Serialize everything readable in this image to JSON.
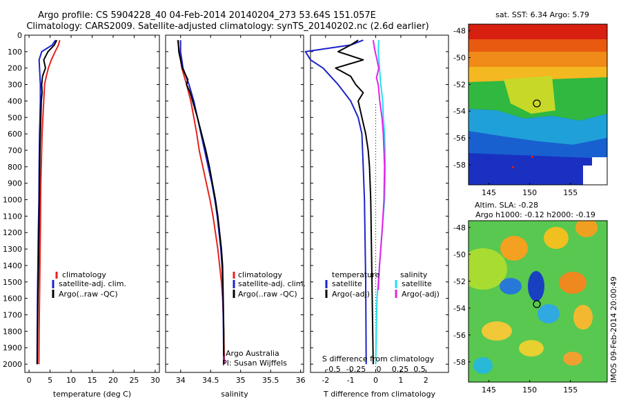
{
  "header": {
    "line1": "Argo profile: CS 5904228_40 04-Feb-2014 20140204_273 53.64S 151.057E",
    "line2": "Climatology: CARS2009. Satellite-adjusted climatology: synTS_20140202.nc (2.6d earlier)"
  },
  "side_label": "IMOS 09-Feb-2014 20:00:49",
  "colors": {
    "climatology": "#e8201a",
    "satellite": "#1a22c8",
    "argo": "#000000",
    "satellite_s": "#1ee0f0",
    "argo_s": "#e81ee8"
  },
  "chart_data": [
    {
      "type": "line",
      "xlabel": "temperature (deg C)",
      "ylabel": "",
      "xlim": [
        -1,
        31
      ],
      "ylim": [
        2050,
        0
      ],
      "xticks": [
        0,
        5,
        10,
        15,
        20,
        25,
        30
      ],
      "yticks": [
        0,
        100,
        200,
        300,
        400,
        500,
        600,
        700,
        800,
        900,
        1000,
        1100,
        1200,
        1300,
        1400,
        1500,
        1600,
        1700,
        1800,
        1900,
        2000
      ],
      "legend": [
        "climatology",
        "satellite-adj. clim.",
        "Argo(..raw -QC)"
      ],
      "series": [
        {
          "key": "climatology",
          "values": [
            [
              7.3,
              30
            ],
            [
              7.0,
              60
            ],
            [
              6.2,
              100
            ],
            [
              5.3,
              150
            ],
            [
              4.6,
              200
            ],
            [
              4.1,
              250
            ],
            [
              3.7,
              300
            ],
            [
              3.5,
              400
            ],
            [
              3.3,
              500
            ],
            [
              3.1,
              600
            ],
            [
              3.0,
              700
            ],
            [
              2.9,
              800
            ],
            [
              2.8,
              900
            ],
            [
              2.75,
              1000
            ],
            [
              2.7,
              1200
            ],
            [
              2.6,
              1400
            ],
            [
              2.5,
              1600
            ],
            [
              2.4,
              1800
            ],
            [
              2.35,
              2000
            ]
          ]
        },
        {
          "key": "satellite",
          "values": [
            [
              6.3,
              30
            ],
            [
              5.5,
              60
            ],
            [
              3.0,
              100
            ],
            [
              2.4,
              150
            ],
            [
              2.5,
              200
            ],
            [
              2.6,
              250
            ],
            [
              2.7,
              300
            ],
            [
              2.7,
              400
            ],
            [
              2.6,
              500
            ],
            [
              2.5,
              600
            ],
            [
              2.45,
              700
            ],
            [
              2.4,
              800
            ],
            [
              2.35,
              1000
            ],
            [
              2.2,
              1200
            ],
            [
              2.1,
              1400
            ],
            [
              2.0,
              1600
            ],
            [
              1.95,
              1800
            ],
            [
              1.9,
              2000
            ]
          ]
        },
        {
          "key": "argo",
          "values": [
            [
              6.6,
              30
            ],
            [
              6.0,
              60
            ],
            [
              4.5,
              100
            ],
            [
              3.5,
              150
            ],
            [
              3.9,
              200
            ],
            [
              3.2,
              250
            ],
            [
              3.0,
              300
            ],
            [
              3.1,
              350
            ],
            [
              2.9,
              400
            ],
            [
              2.8,
              500
            ],
            [
              2.7,
              600
            ],
            [
              2.6,
              700
            ],
            [
              2.55,
              800
            ],
            [
              2.5,
              900
            ],
            [
              2.45,
              1000
            ],
            [
              2.35,
              1200
            ],
            [
              2.25,
              1400
            ],
            [
              2.1,
              1600
            ],
            [
              2.0,
              1800
            ],
            [
              1.95,
              2000
            ]
          ]
        }
      ]
    },
    {
      "type": "line",
      "xlabel": "salinity",
      "ylabel": "",
      "xlim": [
        33.75,
        36.05
      ],
      "ylim": [
        2050,
        0
      ],
      "xticks": [
        34,
        34.5,
        35,
        35.5,
        36
      ],
      "legend": [
        "climatology",
        "satellite-adj. clim.",
        "Argo(..raw -QC)"
      ],
      "annotation": [
        "Argo Australia",
        "PI: Susan Wijffels"
      ],
      "series": [
        {
          "key": "climatology",
          "values": [
            [
              33.95,
              30
            ],
            [
              33.98,
              100
            ],
            [
              34.02,
              200
            ],
            [
              34.1,
              300
            ],
            [
              34.17,
              400
            ],
            [
              34.22,
              500
            ],
            [
              34.27,
              600
            ],
            [
              34.31,
              700
            ],
            [
              34.37,
              800
            ],
            [
              34.43,
              900
            ],
            [
              34.49,
              1000
            ],
            [
              34.54,
              1100
            ],
            [
              34.58,
              1200
            ],
            [
              34.62,
              1300
            ],
            [
              34.65,
              1400
            ],
            [
              34.68,
              1500
            ],
            [
              34.7,
              1600
            ],
            [
              34.71,
              1700
            ],
            [
              34.72,
              1800
            ],
            [
              34.73,
              2000
            ]
          ]
        },
        {
          "key": "satellite",
          "values": [
            [
              34.0,
              30
            ],
            [
              34.0,
              100
            ],
            [
              34.04,
              200
            ],
            [
              34.14,
              300
            ],
            [
              34.22,
              400
            ],
            [
              34.28,
              500
            ],
            [
              34.34,
              600
            ],
            [
              34.4,
              700
            ],
            [
              34.46,
              800
            ],
            [
              34.52,
              900
            ],
            [
              34.57,
              1000
            ],
            [
              34.61,
              1100
            ],
            [
              34.64,
              1200
            ],
            [
              34.67,
              1300
            ],
            [
              34.69,
              1400
            ],
            [
              34.7,
              1500
            ],
            [
              34.71,
              1700
            ],
            [
              34.72,
              2000
            ]
          ]
        },
        {
          "key": "argo",
          "values": [
            [
              33.96,
              30
            ],
            [
              33.97,
              100
            ],
            [
              34.0,
              150
            ],
            [
              34.03,
              200
            ],
            [
              34.12,
              270
            ],
            [
              34.1,
              300
            ],
            [
              34.16,
              350
            ],
            [
              34.2,
              400
            ],
            [
              34.28,
              500
            ],
            [
              34.35,
              600
            ],
            [
              34.42,
              700
            ],
            [
              34.48,
              800
            ],
            [
              34.53,
              900
            ],
            [
              34.58,
              1000
            ],
            [
              34.62,
              1100
            ],
            [
              34.65,
              1200
            ],
            [
              34.68,
              1300
            ],
            [
              34.7,
              1400
            ],
            [
              34.71,
              1600
            ],
            [
              34.72,
              1800
            ],
            [
              34.72,
              1950
            ]
          ]
        }
      ]
    },
    {
      "type": "line",
      "xlabel": "T difference from climatology",
      "ylabel": "",
      "xlim": [
        -2.6,
        2.9
      ],
      "ylim": [
        2050,
        0
      ],
      "xticks": [
        -2,
        -1,
        0,
        1,
        2
      ],
      "top_axis": {
        "label": "S difference from climatology",
        "ticks": [
          "-0.5",
          "-0.25",
          "0",
          "0.25",
          "0.5"
        ]
      },
      "legend_left_title": "temperature",
      "legend_right_title": "salinity",
      "legend": [
        "satellite",
        "Argo(-adj)",
        "satellite",
        "Argo(-adj)"
      ],
      "series": [
        {
          "key": "satellite",
          "values": [
            [
              -0.5,
              30
            ],
            [
              -1.0,
              60
            ],
            [
              -2.8,
              100
            ],
            [
              -2.6,
              150
            ],
            [
              -2.1,
              200
            ],
            [
              -1.5,
              300
            ],
            [
              -1.0,
              400
            ],
            [
              -0.7,
              500
            ],
            [
              -0.55,
              600
            ],
            [
              -0.5,
              800
            ],
            [
              -0.45,
              1000
            ],
            [
              -0.4,
              1500
            ],
            [
              -0.38,
              2000
            ]
          ]
        },
        {
          "key": "argo",
          "values": [
            [
              -0.7,
              30
            ],
            [
              -1.0,
              60
            ],
            [
              -1.5,
              100
            ],
            [
              -0.5,
              150
            ],
            [
              -1.6,
              200
            ],
            [
              -1.0,
              250
            ],
            [
              -0.8,
              300
            ],
            [
              -0.5,
              350
            ],
            [
              -0.7,
              400
            ],
            [
              -0.55,
              500
            ],
            [
              -0.4,
              600
            ],
            [
              -0.3,
              700
            ],
            [
              -0.25,
              800
            ],
            [
              -0.2,
              1000
            ],
            [
              -0.15,
              1500
            ],
            [
              -0.1,
              2000
            ]
          ]
        },
        {
          "key": "satellite_s",
          "values": [
            [
              0.12,
              30
            ],
            [
              0.1,
              100
            ],
            [
              0.15,
              200
            ],
            [
              0.2,
              300
            ],
            [
              0.28,
              400
            ],
            [
              0.3,
              500
            ],
            [
              0.35,
              600
            ],
            [
              0.37,
              700
            ],
            [
              0.38,
              800
            ],
            [
              0.35,
              1000
            ],
            [
              0.25,
              1200
            ],
            [
              0.15,
              1400
            ],
            [
              0.05,
              1600
            ],
            [
              0.02,
              1800
            ],
            [
              0.0,
              2000
            ]
          ]
        },
        {
          "key": "argo_s",
          "values": [
            [
              -0.1,
              30
            ],
            [
              -0.05,
              80
            ],
            [
              0.05,
              150
            ],
            [
              0.12,
              200
            ],
            [
              0.03,
              260
            ],
            [
              0.1,
              300
            ],
            [
              0.16,
              400
            ],
            [
              0.25,
              500
            ],
            [
              0.3,
              600
            ],
            [
              0.33,
              700
            ],
            [
              0.35,
              800
            ],
            [
              0.33,
              1000
            ],
            [
              0.25,
              1200
            ],
            [
              0.15,
              1400
            ],
            [
              0.1,
              1550
            ]
          ]
        }
      ]
    },
    {
      "type": "heatmap",
      "title": "sat. SST: 6.34 Argo: 5.79",
      "xlim": [
        142.5,
        159.5
      ],
      "ylim": [
        -59.5,
        -47.5
      ],
      "xticks": [
        145,
        150,
        155
      ],
      "yticks": [
        -48,
        -50,
        -52,
        -54,
        -56,
        -58
      ],
      "marker": [
        151.0,
        -53.64
      ]
    },
    {
      "type": "heatmap",
      "title": "Altim. SLA: -0.28",
      "subtitle": "Argo h1000: -0.12 h2000: -0.19",
      "xlim": [
        142.5,
        159.5
      ],
      "ylim": [
        -59.5,
        -47.5
      ],
      "xticks": [
        145,
        150,
        155
      ],
      "yticks": [
        -48,
        -50,
        -52,
        -54,
        -56,
        -58
      ],
      "marker": [
        151.0,
        -53.64
      ]
    }
  ]
}
